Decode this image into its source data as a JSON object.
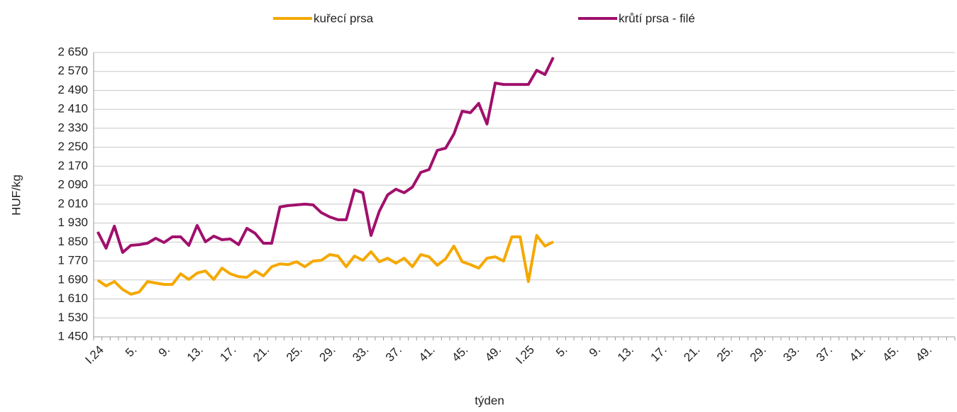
{
  "chart_data": {
    "type": "line",
    "x_label": "týden",
    "y_label": "HUF/kg",
    "categories": [
      "I.24",
      null,
      null,
      null,
      "5.",
      null,
      null,
      null,
      "9.",
      null,
      null,
      null,
      "13.",
      null,
      null,
      null,
      "17.",
      null,
      null,
      null,
      "21.",
      null,
      null,
      null,
      "25.",
      null,
      null,
      null,
      "29.",
      null,
      null,
      null,
      "33.",
      null,
      null,
      null,
      "37.",
      null,
      null,
      null,
      "41.",
      null,
      null,
      null,
      "45.",
      null,
      null,
      null,
      "49.",
      null,
      null,
      null,
      "I.25",
      null,
      null,
      null,
      "5.",
      null,
      null,
      null,
      "9.",
      null,
      null,
      null,
      "13.",
      null,
      null,
      null,
      "17.",
      null,
      null,
      null,
      "21.",
      null,
      null,
      null,
      "25.",
      null,
      null,
      null,
      "29.",
      null,
      null,
      null,
      "33.",
      null,
      null,
      null,
      "37.",
      null,
      null,
      null,
      "41.",
      null,
      null,
      null,
      "45.",
      null,
      null,
      null,
      "49.",
      null,
      null,
      null
    ],
    "series": [
      {
        "name": "kuřecí prsa",
        "color": "#f5a800",
        "values": [
          1689,
          1665,
          1683,
          1650,
          1630,
          1639,
          1683,
          1677,
          1671,
          1671,
          1716,
          1692,
          1719,
          1728,
          1692,
          1740,
          1716,
          1704,
          1701,
          1728,
          1707,
          1746,
          1758,
          1755,
          1767,
          1746,
          1770,
          1773,
          1797,
          1791,
          1746,
          1791,
          1773,
          1809,
          1767,
          1782,
          1761,
          1782,
          1746,
          1797,
          1788,
          1752,
          1779,
          1833,
          1767,
          1755,
          1740,
          1782,
          1788,
          1770,
          1872,
          1872,
          1683,
          1878,
          1833,
          1851,
          null,
          null,
          null,
          null,
          null,
          null,
          null,
          null,
          null,
          null,
          null,
          null,
          null,
          null,
          null,
          null,
          null,
          null,
          null,
          null,
          null,
          null,
          null,
          null,
          null,
          null,
          null,
          null,
          null,
          null,
          null,
          null,
          null,
          null,
          null,
          null,
          null,
          null,
          null,
          null,
          null,
          null,
          null,
          null,
          null,
          null,
          null,
          null
        ]
      },
      {
        "name": "krůtí prsa - filé",
        "color": "#a0106c",
        "values": [
          1893,
          1824,
          1917,
          1806,
          1836,
          1839,
          1845,
          1866,
          1848,
          1872,
          1872,
          1836,
          1920,
          1851,
          1875,
          1860,
          1863,
          1839,
          1908,
          1887,
          1845,
          1845,
          1998,
          2004,
          2007,
          2010,
          2007,
          1974,
          1956,
          1944,
          1944,
          2070,
          2058,
          1878,
          1980,
          2049,
          2073,
          2058,
          2082,
          2144,
          2156,
          2237,
          2246,
          2306,
          2402,
          2396,
          2435,
          2348,
          2521,
          2515,
          2515,
          2515,
          2515,
          2575,
          2557,
          2629,
          null,
          null,
          null,
          null,
          null,
          null,
          null,
          null,
          null,
          null,
          null,
          null,
          null,
          null,
          null,
          null,
          null,
          null,
          null,
          null,
          null,
          null,
          null,
          null,
          null,
          null,
          null,
          null,
          null,
          null,
          null,
          null,
          null,
          null,
          null,
          null,
          null,
          null,
          null,
          null,
          null,
          null,
          null,
          null,
          null,
          null,
          null,
          null
        ]
      }
    ],
    "ylim": [
      1450,
      2650
    ],
    "yticks": [
      {
        "value": 1450,
        "label": "1 450"
      },
      {
        "value": 1530,
        "label": "1 530"
      },
      {
        "value": 1610,
        "label": "1 610"
      },
      {
        "value": 1690,
        "label": "1 690"
      },
      {
        "value": 1770,
        "label": "1 770"
      },
      {
        "value": 1850,
        "label": "1 850"
      },
      {
        "value": 1930,
        "label": "1 930"
      },
      {
        "value": 2010,
        "label": "2 010"
      },
      {
        "value": 2090,
        "label": "2 090"
      },
      {
        "value": 2170,
        "label": "2 170"
      },
      {
        "value": 2250,
        "label": "2 250"
      },
      {
        "value": 2330,
        "label": "2 330"
      },
      {
        "value": 2410,
        "label": "2 410"
      },
      {
        "value": 2490,
        "label": "2 490"
      },
      {
        "value": 2570,
        "label": "2 570"
      },
      {
        "value": 2650,
        "label": "2 650"
      }
    ],
    "grid": true,
    "legend": "top"
  }
}
